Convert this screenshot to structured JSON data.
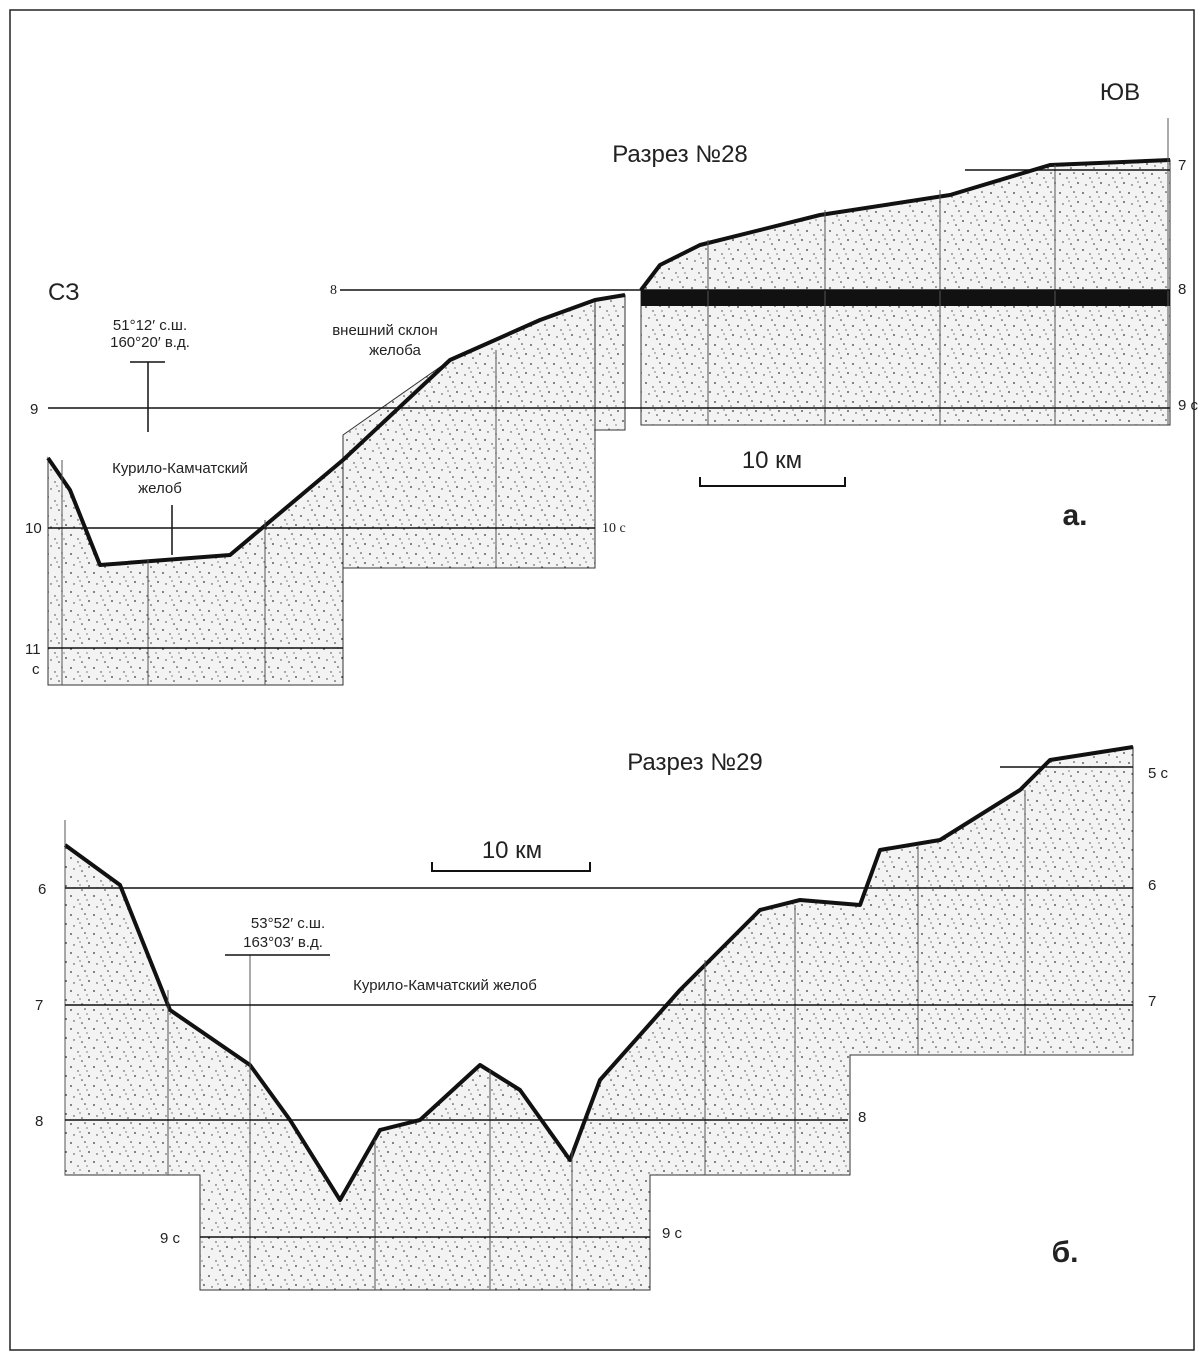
{
  "panel_a": {
    "direction_left": "СЗ",
    "direction_right": "ЮВ",
    "title": "Разрез №28",
    "coordinates": [
      "51°12′ с.ш.",
      "160°20′ в.д."
    ],
    "slope_label": [
      "внешний склон",
      "желоба"
    ],
    "trench_label": [
      "Курило-Камчатский",
      "желоб"
    ],
    "scale_label": "10 км",
    "panel_label": "а.",
    "left_depths": [
      "8",
      "9",
      "10",
      "11",
      "с"
    ],
    "right_depths": [
      "7",
      "8",
      "9 с",
      "10 с"
    ]
  },
  "panel_b": {
    "title": "Разрез №29",
    "coordinates": [
      "53°52′ с.ш.",
      "163°03′ в.д."
    ],
    "trench_label": "Курило-Камчатский желоб",
    "scale_label": "10 км",
    "panel_label": "б.",
    "left_depths": [
      "6",
      "7",
      "8",
      "9 с"
    ],
    "right_depths": [
      "5 с",
      "6",
      "7",
      "8",
      "9 с"
    ]
  }
}
